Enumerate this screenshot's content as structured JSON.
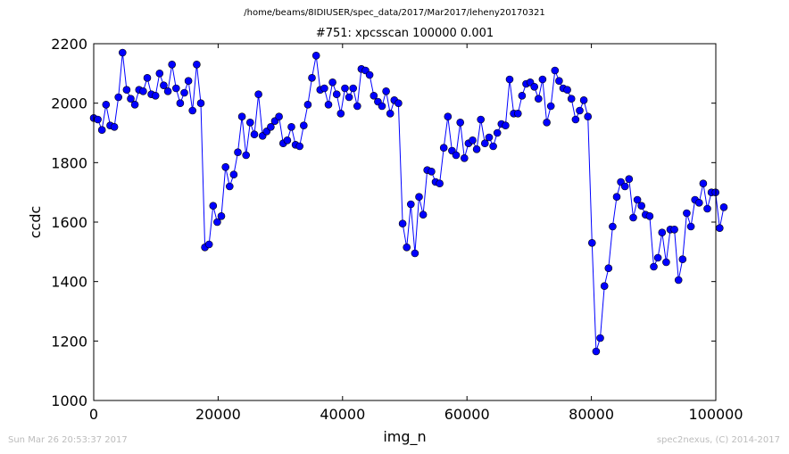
{
  "suptitle": "/home/beams/8IDIUSER/spec_data/2017/Mar2017/leheny20170321",
  "footer": {
    "timestamp": "Sun Mar 26 20:53:37 2017",
    "credit": "spec2nexus, (C) 2014-2017"
  },
  "colors": {
    "series": "#0000ff",
    "axes": "#000000"
  },
  "chart_data": {
    "type": "line",
    "title": "#751: xpcsscan 100000 0.001",
    "xlabel": "img_n",
    "ylabel": "ccdc",
    "xlim": [
      0,
      100000
    ],
    "ylim": [
      1000,
      2200
    ],
    "xticks": [
      0,
      20000,
      40000,
      60000,
      80000,
      100000
    ],
    "yticks": [
      1000,
      1200,
      1400,
      1600,
      1800,
      2000,
      2200
    ],
    "xtick_labels": [
      "0",
      "20000",
      "40000",
      "60000",
      "80000",
      "100000"
    ],
    "ytick_labels": [
      "1000",
      "1200",
      "1400",
      "1600",
      "1800",
      "2000",
      "2200"
    ],
    "grid": false,
    "marker": "circle",
    "series": [
      {
        "x_start": 0,
        "x_step": 662,
        "values": [
          1950,
          1945,
          1910,
          1995,
          1925,
          1920,
          2020,
          2170,
          2045,
          2015,
          1995,
          2045,
          2040,
          2085,
          2030,
          2025,
          2100,
          2060,
          2040,
          2130,
          2050,
          2000,
          2035,
          2075,
          1975,
          2130,
          2000,
          1515,
          1525,
          1655,
          1600,
          1620,
          1785,
          1720,
          1760,
          1835,
          1955,
          1825,
          1935,
          1895,
          2030,
          1890,
          1905,
          1920,
          1940,
          1955,
          1865,
          1875,
          1920,
          1860,
          1855,
          1925,
          1995,
          2085,
          2160,
          2045,
          2050,
          1995,
          2070,
          2030,
          1965,
          2050,
          2020,
          2050,
          1990,
          2115,
          2110,
          2095,
          2025,
          2005,
          1990,
          2040,
          1965,
          2010,
          2000,
          1595,
          1515,
          1660,
          1495,
          1685,
          1625,
          1775,
          1770,
          1735,
          1730,
          1850,
          1955,
          1840,
          1825,
          1935,
          1815,
          1865,
          1875,
          1845,
          1945,
          1865,
          1885,
          1855,
          1900,
          1930,
          1925,
          2080,
          1965,
          1965,
          2025,
          2065,
          2070,
          2055,
          2015,
          2080,
          1935,
          1990,
          2110,
          2075,
          2050,
          2045,
          2015,
          1945,
          1975,
          2010,
          1955,
          1530,
          1165,
          1210,
          1385,
          1445,
          1585,
          1685,
          1735,
          1720,
          1745,
          1615,
          1675,
          1655,
          1625,
          1620,
          1450,
          1480,
          1565,
          1465,
          1575,
          1575,
          1405,
          1475,
          1630,
          1585,
          1675,
          1665,
          1730,
          1645,
          1700,
          1700,
          1580,
          1650
        ]
      }
    ]
  }
}
